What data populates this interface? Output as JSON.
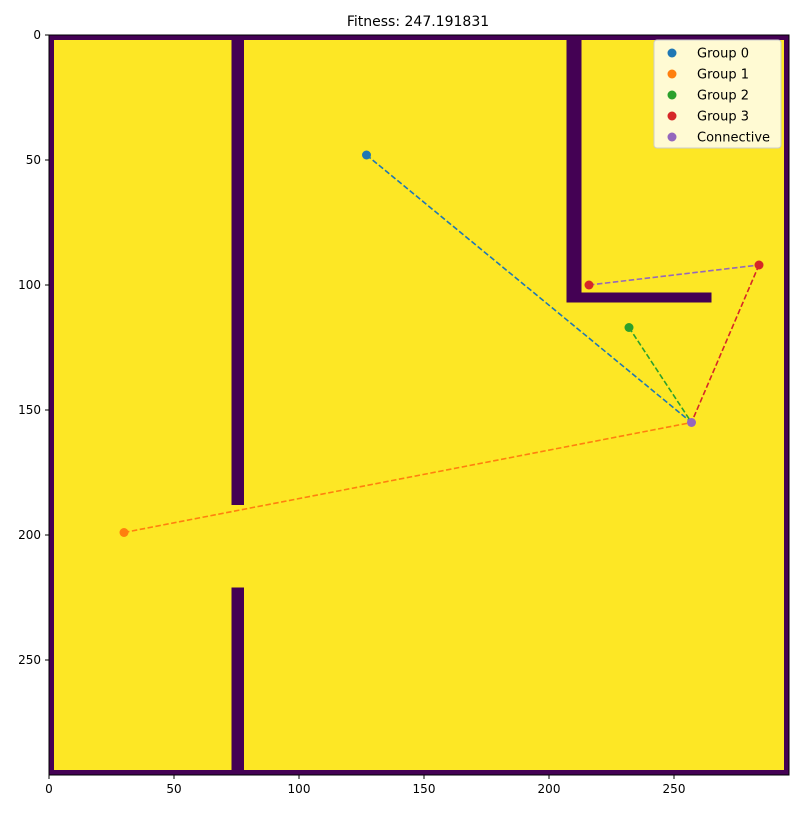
{
  "chart_data": {
    "type": "scatter",
    "title": "Fitness: 247.191831",
    "xlabel": "",
    "ylabel": "",
    "xlim": [
      0,
      296
    ],
    "ylim": [
      296,
      0
    ],
    "xticks": [
      0,
      50,
      100,
      150,
      200,
      250
    ],
    "yticks": [
      0,
      50,
      100,
      150,
      200,
      250
    ],
    "background_map": {
      "wall_color": "#440154",
      "free_color": "#fde725",
      "size": [
        296,
        296
      ],
      "free_regions": [
        {
          "name": "left-room-upper",
          "x": [
            2,
            73
          ],
          "y": [
            2,
            188
          ]
        },
        {
          "name": "left-room-lower",
          "x": [
            2,
            73
          ],
          "y": [
            188,
            294
          ]
        },
        {
          "name": "door-gap",
          "x": [
            73,
            78
          ],
          "y": [
            188,
            221
          ]
        },
        {
          "name": "main-room-top",
          "x": [
            78,
            207
          ],
          "y": [
            2,
            107
          ]
        },
        {
          "name": "main-room-bottom",
          "x": [
            78,
            294
          ],
          "y": [
            107,
            294
          ]
        },
        {
          "name": "upper-right-room",
          "x": [
            213,
            294
          ],
          "y": [
            2,
            103
          ]
        },
        {
          "name": "right-strip",
          "x": [
            265,
            294
          ],
          "y": [
            103,
            107
          ]
        }
      ]
    },
    "series": [
      {
        "name": "Group 0",
        "color": "#1f77b4",
        "points": [
          [
            127,
            48
          ],
          [
            257,
            155
          ]
        ]
      },
      {
        "name": "Group 1",
        "color": "#ff7f0e",
        "points": [
          [
            30,
            199
          ],
          [
            257,
            155
          ]
        ]
      },
      {
        "name": "Group 2",
        "color": "#2ca02c",
        "points": [
          [
            232,
            117
          ],
          [
            257,
            155
          ]
        ]
      },
      {
        "name": "Group 3",
        "color": "#d62728",
        "points": [
          [
            284,
            92
          ],
          [
            257,
            155
          ]
        ]
      },
      {
        "name": "Connective",
        "color": "#9467bd",
        "points": [
          [
            216,
            100
          ],
          [
            284,
            92
          ]
        ]
      }
    ],
    "markers": [
      {
        "name": "Group 0",
        "color": "#1f77b4",
        "x": 127,
        "y": 48
      },
      {
        "name": "Group 1",
        "color": "#ff7f0e",
        "x": 30,
        "y": 199
      },
      {
        "name": "Group 2",
        "color": "#2ca02c",
        "x": 232,
        "y": 117
      },
      {
        "name": "Group 3",
        "color": "#d62728",
        "x": 284,
        "y": 92
      },
      {
        "name": "Group 3",
        "color": "#d62728",
        "x": 216,
        "y": 100
      },
      {
        "name": "Connective",
        "color": "#9467bd",
        "x": 257,
        "y": 155
      }
    ],
    "legend": {
      "placement": "top-right",
      "entries": [
        {
          "label": "Group 0",
          "color": "#1f77b4"
        },
        {
          "label": "Group 1",
          "color": "#ff7f0e"
        },
        {
          "label": "Group 2",
          "color": "#2ca02c"
        },
        {
          "label": "Group 3",
          "color": "#d62728"
        },
        {
          "label": "Connective",
          "color": "#9467bd"
        }
      ]
    }
  }
}
